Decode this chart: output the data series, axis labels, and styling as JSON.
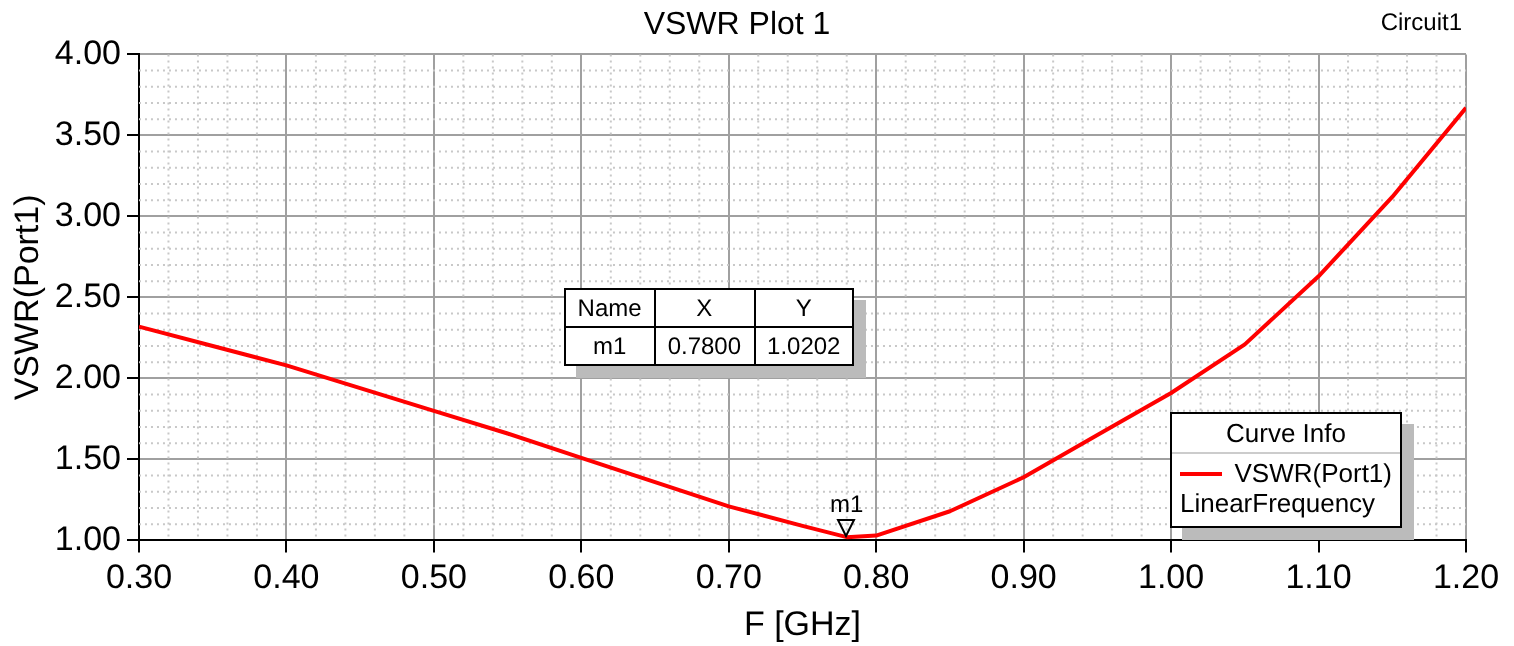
{
  "chart_data": {
    "type": "line",
    "title": "VSWR Plot 1",
    "xlabel": "F [GHz]",
    "ylabel": "VSWR(Port1)",
    "legend_title": "Curve Info",
    "x": [
      0.3,
      0.35,
      0.4,
      0.45,
      0.5,
      0.55,
      0.6,
      0.65,
      0.7,
      0.75,
      0.78,
      0.8,
      0.85,
      0.9,
      0.95,
      1.0,
      1.05,
      1.1,
      1.15,
      1.2
    ],
    "series": [
      {
        "name": "VSWR(Port1)",
        "color": "#ff0000",
        "values": [
          2.32,
          2.2,
          2.08,
          1.94,
          1.8,
          1.66,
          1.51,
          1.36,
          1.21,
          1.09,
          1.0202,
          1.03,
          1.18,
          1.39,
          1.65,
          1.91,
          2.21,
          2.63,
          3.12,
          3.67
        ]
      }
    ],
    "xlim": [
      0.3,
      1.2
    ],
    "xticks": [
      {
        "value": 0.3,
        "label": "0.30"
      },
      {
        "value": 0.4,
        "label": "0.40"
      },
      {
        "value": 0.5,
        "label": "0.50"
      },
      {
        "value": 0.6,
        "label": "0.60"
      },
      {
        "value": 0.7,
        "label": "0.70"
      },
      {
        "value": 0.8,
        "label": "0.80"
      },
      {
        "value": 0.9,
        "label": "0.90"
      },
      {
        "value": 1.0,
        "label": "1.00"
      },
      {
        "value": 1.1,
        "label": "1.10"
      },
      {
        "value": 1.2,
        "label": "1.20"
      }
    ],
    "ylim": [
      1.0,
      4.0
    ],
    "yticks": [
      {
        "value": 1,
        "label": "1.00"
      },
      {
        "value": 1.5,
        "label": "1.50"
      },
      {
        "value": 2,
        "label": "2.00"
      },
      {
        "value": 2.5,
        "label": "2.50"
      },
      {
        "value": 3,
        "label": "3.00"
      },
      {
        "value": 3.5,
        "label": "3.50"
      },
      {
        "value": 4,
        "label": "4.00"
      }
    ],
    "annotations": [
      {
        "text": "m1",
        "x": 0.78,
        "y": 1.0202
      },
      "Name",
      "X",
      "Y",
      "m1",
      "0.7800",
      "1.0202",
      "LinearFrequency",
      "Circuit1"
    ],
    "grid": true,
    "legend": "bottom right",
    "marker": "none",
    "line_style": "solid"
  }
}
